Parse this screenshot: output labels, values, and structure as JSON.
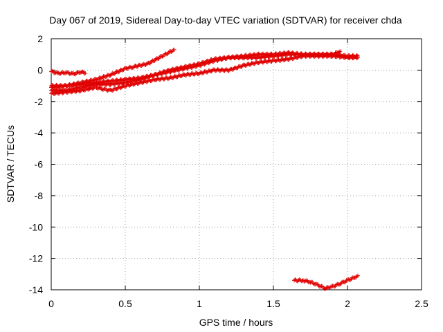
{
  "chart_data": {
    "type": "scatter",
    "title": "Day 067 of 2019, Sidereal Day-to-day VTEC variation (SDTVAR) for receiver chda",
    "xlabel": "GPS time / hours",
    "ylabel": "SDTVAR / TECUs",
    "xlim": [
      0,
      2.5
    ],
    "ylim": [
      -14,
      2
    ],
    "xticks": [
      0,
      0.5,
      1,
      1.5,
      2,
      2.5
    ],
    "xtick_labels": [
      "0",
      "0.5",
      "1",
      "1.5",
      "2",
      "2.5"
    ],
    "yticks": [
      2,
      0,
      -2,
      -4,
      -6,
      -8,
      -10,
      -12,
      -14
    ],
    "ytick_labels": [
      "2",
      "0",
      "-2",
      "-4",
      "-6",
      "-8",
      "-10",
      "-12",
      "-14"
    ],
    "grid": true,
    "marker": "plus",
    "color": "#e00000",
    "series": [
      {
        "name": "track-1",
        "x": [
          0.0,
          0.05,
          0.1,
          0.15,
          0.2,
          0.23
        ],
        "y": [
          -0.1,
          -0.2,
          -0.15,
          -0.25,
          -0.1,
          -0.2
        ]
      },
      {
        "name": "track-2",
        "x": [
          0.0,
          0.1,
          0.2,
          0.3,
          0.4,
          0.5,
          0.55,
          0.65,
          0.75,
          0.83
        ],
        "y": [
          -1.1,
          -1.0,
          -0.8,
          -0.6,
          -0.3,
          0.1,
          0.2,
          0.4,
          0.9,
          1.3
        ]
      },
      {
        "name": "track-3",
        "x": [
          0.0,
          0.1,
          0.2,
          0.3,
          0.4,
          0.5,
          0.6,
          0.7,
          0.8,
          0.9,
          1.0,
          1.1,
          1.2,
          1.3,
          1.4,
          1.5,
          1.6,
          1.7,
          1.8,
          1.9,
          1.95
        ],
        "y": [
          -1.0,
          -1.0,
          -0.9,
          -0.8,
          -0.7,
          -0.6,
          -0.5,
          -0.3,
          0.0,
          0.2,
          0.4,
          0.7,
          0.8,
          0.8,
          0.8,
          0.9,
          1.0,
          1.0,
          1.0,
          1.0,
          1.2
        ]
      },
      {
        "name": "track-4",
        "x": [
          0.0,
          0.1,
          0.2,
          0.3,
          0.4,
          0.5,
          0.6,
          0.7,
          0.8,
          0.9,
          1.0,
          1.1,
          1.2,
          1.3,
          1.4,
          1.5,
          1.6,
          1.7,
          1.8,
          1.9,
          2.0,
          2.07
        ],
        "y": [
          -1.3,
          -1.3,
          -1.1,
          -0.9,
          -0.9,
          -0.8,
          -0.6,
          -0.3,
          -0.1,
          0.1,
          0.3,
          0.6,
          0.8,
          0.9,
          1.0,
          1.0,
          1.1,
          1.0,
          1.0,
          1.0,
          0.9,
          0.9
        ]
      },
      {
        "name": "track-5",
        "x": [
          0.0,
          0.1,
          0.2,
          0.3,
          0.35,
          0.4,
          0.5,
          0.6,
          0.7,
          0.8,
          0.9,
          1.0,
          1.1,
          1.2,
          1.3,
          1.4,
          1.5,
          1.6,
          1.7,
          1.8,
          1.9,
          2.0,
          2.07
        ],
        "y": [
          -1.5,
          -1.4,
          -1.3,
          -1.1,
          -1.2,
          -1.3,
          -1.0,
          -0.8,
          -0.6,
          -0.5,
          -0.3,
          -0.2,
          0.0,
          0.0,
          0.3,
          0.5,
          0.6,
          0.7,
          0.9,
          0.9,
          0.9,
          0.8,
          0.8
        ]
      },
      {
        "name": "track-6",
        "x": [
          1.64,
          1.7,
          1.75,
          1.8,
          1.85,
          1.9,
          1.95,
          2.0,
          2.05,
          2.07
        ],
        "y": [
          -13.4,
          -13.4,
          -13.5,
          -13.7,
          -13.9,
          -13.8,
          -13.6,
          -13.4,
          -13.2,
          -13.1
        ]
      }
    ]
  }
}
